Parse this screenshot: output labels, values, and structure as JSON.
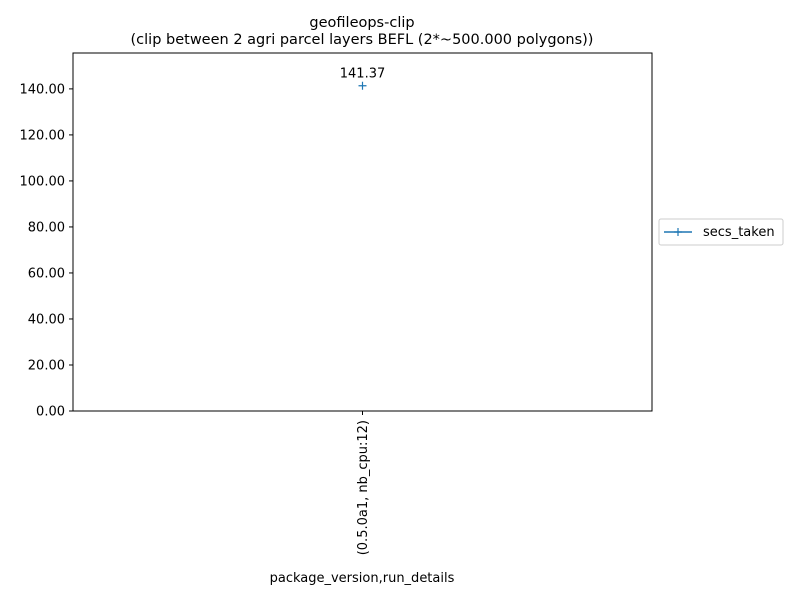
{
  "chart_data": {
    "type": "line",
    "title": "geofileops-clip",
    "subtitle": "(clip between 2 agri parcel layers BEFL (2*~500.000 polygons))",
    "xlabel": "package_version,run_details",
    "ylabel": "",
    "categories": [
      "(0.5.0a1, nb_cpu:12)"
    ],
    "series": [
      {
        "name": "secs_taken",
        "values": [
          141.37
        ],
        "color": "#1f77b4",
        "marker": "+"
      }
    ],
    "data_labels": [
      "141.37"
    ],
    "ylim": [
      0,
      155.6
    ],
    "yticks": [
      0,
      20,
      40,
      60,
      80,
      100,
      120,
      140
    ],
    "ytick_labels": [
      "0.00",
      "20.00",
      "40.00",
      "60.00",
      "80.00",
      "100.00",
      "120.00",
      "140.00"
    ],
    "xtick_rotation": 90,
    "grid": false,
    "legend_position": "outside-right"
  }
}
